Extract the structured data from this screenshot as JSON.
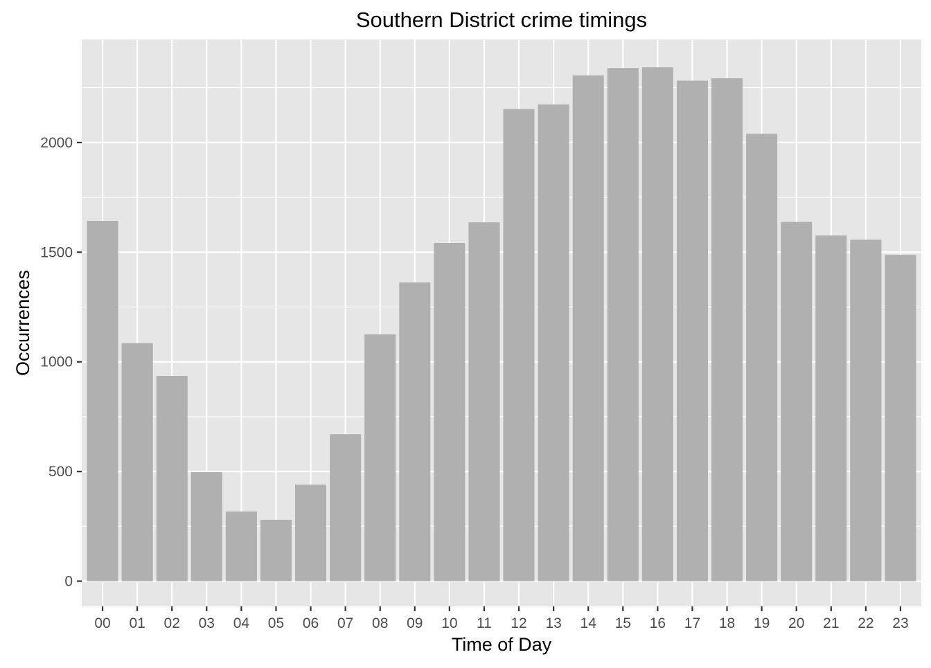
{
  "chart_data": {
    "type": "bar",
    "title": "Southern District crime timings",
    "xlabel": "Time of Day",
    "ylabel": "Occurrences",
    "categories": [
      "00",
      "01",
      "02",
      "03",
      "04",
      "05",
      "06",
      "07",
      "08",
      "09",
      "10",
      "11",
      "12",
      "13",
      "14",
      "15",
      "16",
      "17",
      "18",
      "19",
      "20",
      "21",
      "22",
      "23"
    ],
    "values": [
      1643,
      1085,
      936,
      497,
      318,
      280,
      440,
      670,
      1125,
      1362,
      1542,
      1636,
      2153,
      2174,
      2306,
      2340,
      2343,
      2282,
      2293,
      2040,
      1638,
      1576,
      1557,
      1488
    ],
    "yticks": [
      0,
      500,
      1000,
      1500,
      2000
    ],
    "ylim": [
      -115,
      2470
    ],
    "grid": true,
    "legend": "none",
    "bar_color": "#b0b0b0",
    "panel_color": "#e6e6e6"
  }
}
